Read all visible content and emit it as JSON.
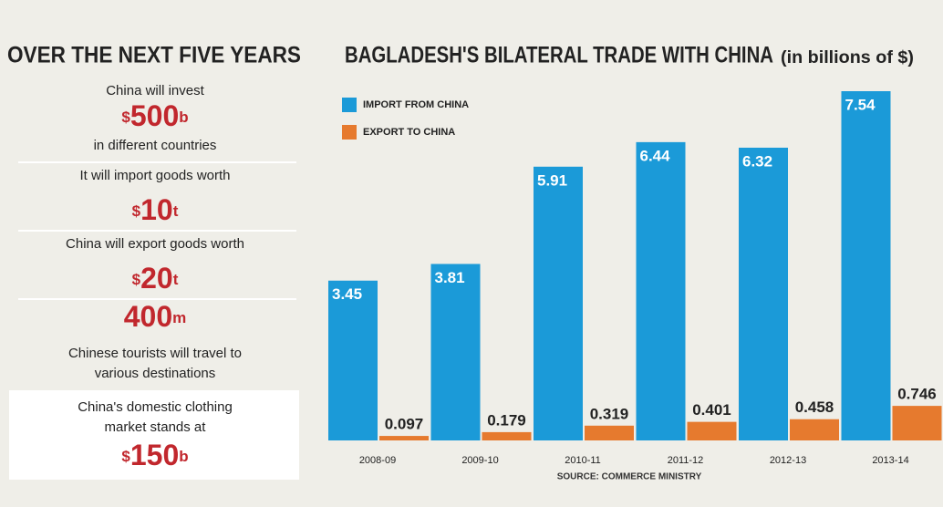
{
  "panel": {
    "heading": "OVER THE NEXT FIVE YEARS",
    "items": [
      {
        "before": [
          "China will invest"
        ],
        "prefix": "$",
        "amount": 500,
        "unit": "b",
        "after": [
          "in different countries"
        ]
      },
      {
        "before": [
          "It will import goods worth"
        ],
        "prefix": "$",
        "amount": 10,
        "unit": "t",
        "after": []
      },
      {
        "before": [
          "China will export goods worth"
        ],
        "prefix": "$",
        "amount": 20,
        "unit": "t",
        "after": []
      },
      {
        "before": [],
        "amount": 400,
        "unit": "m",
        "after": [
          "Chinese tourists will travel to",
          "various destinations"
        ]
      },
      {
        "before": [
          "China's domestic clothing",
          "market stands at"
        ],
        "prefix": "$",
        "amount": 150,
        "unit": "b",
        "after": []
      }
    ]
  },
  "chart_data": {
    "type": "bar",
    "title": "BAGLADESH'S BILATERAL TRADE WITH CHINA",
    "subtitle": "(in billions of $)",
    "source": "SOURCE: COMMERCE MINISTRY",
    "categories": [
      "2008-09",
      "2009-10",
      "2010-11",
      "2011-12",
      "2012-13",
      "2013-14"
    ],
    "series": [
      {
        "name": "IMPORT FROM CHINA",
        "color": "#1b9ad8",
        "values": [
          3.45,
          3.81,
          5.91,
          6.44,
          6.32,
          7.54
        ]
      },
      {
        "name": "EXPORT TO CHINA",
        "color": "#e67a2e",
        "values": [
          0.097,
          0.179,
          0.319,
          0.401,
          0.458,
          0.746
        ]
      }
    ],
    "legend": "top-left",
    "grid": false
  }
}
